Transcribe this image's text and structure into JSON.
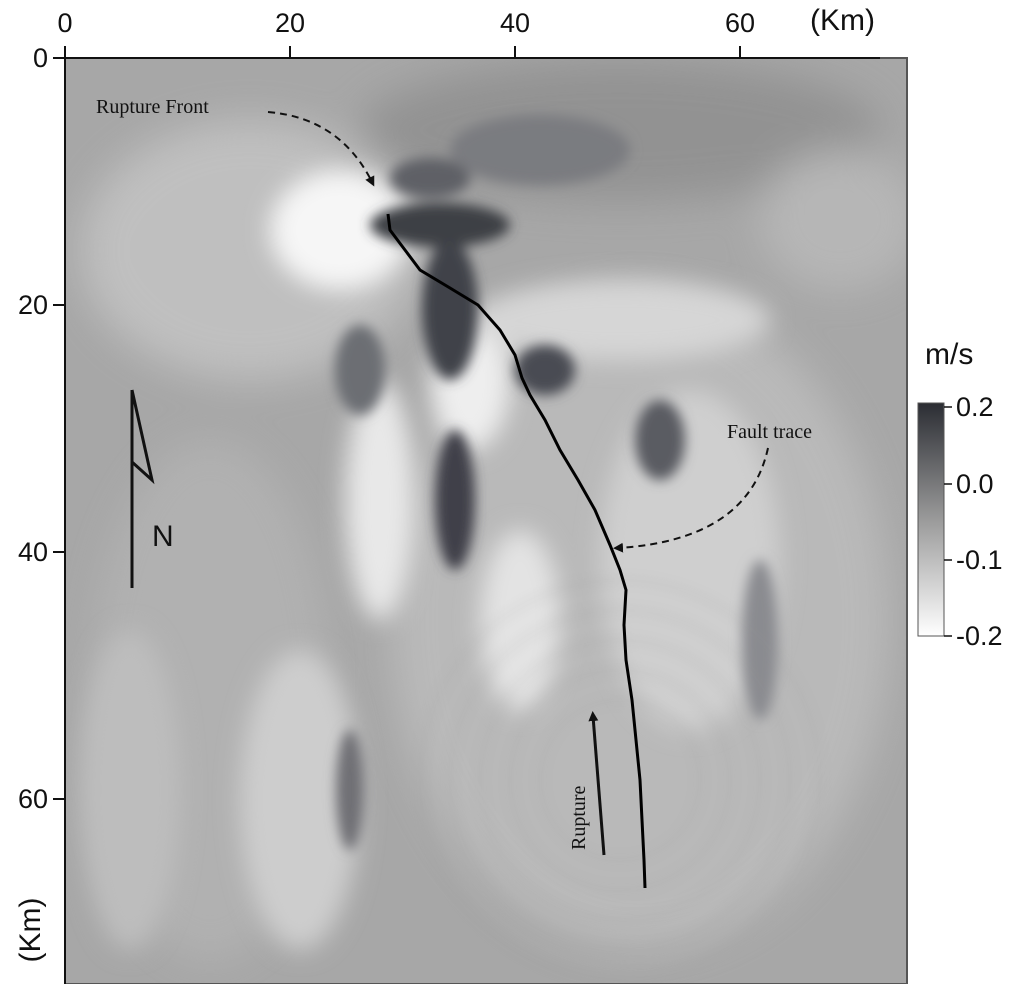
{
  "x_axis": {
    "ticks": [
      "0",
      "20",
      "40",
      "60"
    ],
    "unit": "(Km)"
  },
  "y_axis": {
    "ticks": [
      "0",
      "20",
      "40",
      "60"
    ],
    "unit": "(Km)"
  },
  "annotations": {
    "rupture_front": "Rupture Front",
    "fault_trace": "Fault trace",
    "rupture": "Rupture",
    "north": "N"
  },
  "colorbar": {
    "title": "m/s",
    "ticks": [
      "0.2",
      "0.0",
      "-0.1",
      "-0.2"
    ],
    "colors": {
      "max": "#2b2d33",
      "mid": "#9a9a9a",
      "min": "#ffffff"
    }
  },
  "map_colors": {
    "background": "#a7a7a7",
    "fault_line": "#000000"
  }
}
